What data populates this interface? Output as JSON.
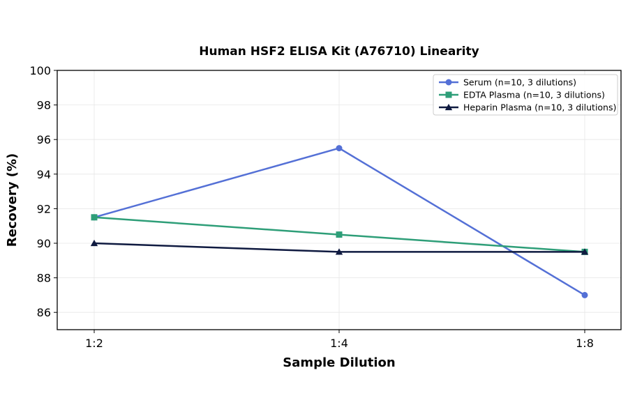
{
  "chart_data": {
    "type": "line",
    "title": "Human HSF2 ELISA Kit (A76710) Linearity",
    "xlabel": "Sample Dilution",
    "ylabel": "Recovery (%)",
    "categories": [
      "1:2",
      "1:4",
      "1:8"
    ],
    "ylim": [
      85,
      100
    ],
    "yticks": [
      86,
      88,
      90,
      92,
      94,
      96,
      98,
      100
    ],
    "grid": true,
    "legend_position": "top-right",
    "series": [
      {
        "name": "Serum (n=10, 3 dilutions)",
        "values": [
          91.5,
          95.5,
          87.0
        ],
        "color": "#5470d6",
        "marker": "circle"
      },
      {
        "name": "EDTA Plasma (n=10, 3 dilutions)",
        "values": [
          91.5,
          90.5,
          89.5
        ],
        "color": "#2e9e78",
        "marker": "square"
      },
      {
        "name": "Heparin Plasma (n=10, 3 dilutions)",
        "values": [
          90.0,
          89.5,
          89.5
        ],
        "color": "#0f1a40",
        "marker": "triangle"
      }
    ]
  }
}
